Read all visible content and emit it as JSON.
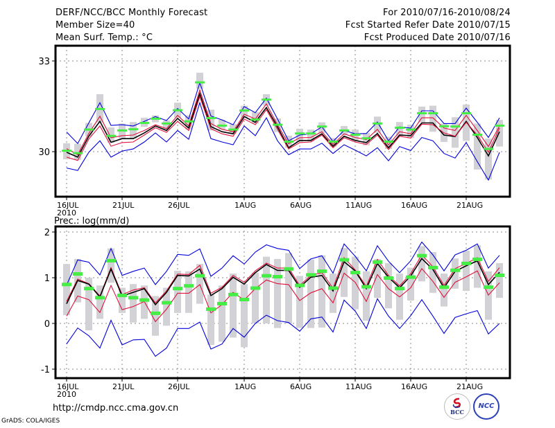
{
  "header": {
    "title": "DERF/NCC/BCC Monthly Forecast",
    "member_size": "Member Size=40",
    "variable_top": "Mean Surf. Temp.: °C",
    "period": "For 2010/07/16-2010/08/24",
    "started": "Fcst Started Refer Date 2010/07/15",
    "produced": "Fcst Produced Date 2010/07/16"
  },
  "footer": {
    "url": "http://cmdp.ncc.cma.gov.cn",
    "grads": "GrADS: COLA/IGES",
    "logo_bcc": "BCC",
    "logo_ncc": "NCC"
  },
  "colors": {
    "ensemble_bound": "#0000dd",
    "spread": "#e0103a",
    "mean": "#000000",
    "obs_marker": "#44ee44",
    "obs_range": "#d2d2d6",
    "grid": "#888888"
  },
  "chart_data": [
    {
      "type": "line",
      "title": "Mean Surf. Temp.: °C",
      "ylabel": "Mean Surf. Temp. (°C)",
      "ylim": [
        27.5,
        33.5
      ],
      "yticks": [
        30,
        33
      ],
      "x_start": "2010-07-16",
      "n_days": 40,
      "xticks": [
        {
          "day": 0,
          "label": "16JUL",
          "sublabel": "2010"
        },
        {
          "day": 5,
          "label": "21JUL"
        },
        {
          "day": 10,
          "label": "26JUL"
        },
        {
          "day": 16,
          "label": "1AUG"
        },
        {
          "day": 21,
          "label": "6AUG"
        },
        {
          "day": 26,
          "label": "11AUG"
        },
        {
          "day": 31,
          "label": "16AUG"
        },
        {
          "day": 36,
          "label": "21AUG"
        }
      ],
      "grid": true,
      "series": [
        {
          "name": "ensemble-max",
          "color_key": "ensemble_bound",
          "values": [
            30.65,
            30.27,
            30.95,
            31.62,
            30.87,
            30.89,
            30.85,
            31.0,
            31.16,
            31.03,
            31.43,
            31.08,
            32.28,
            31.18,
            31.05,
            30.89,
            31.49,
            31.29,
            31.77,
            31.08,
            30.36,
            30.55,
            30.59,
            30.82,
            30.34,
            30.7,
            30.59,
            30.6,
            30.98,
            30.36,
            30.82,
            30.78,
            31.35,
            31.35,
            30.93,
            30.93,
            31.44,
            30.97,
            30.47,
            31.12
          ]
        },
        {
          "name": "spread-upper",
          "color_key": "spread",
          "values": [
            30.1,
            29.9,
            30.6,
            31.17,
            30.46,
            30.53,
            30.55,
            30.7,
            30.89,
            30.76,
            31.2,
            30.85,
            32.04,
            30.93,
            30.74,
            30.66,
            31.24,
            31.08,
            31.58,
            30.89,
            30.26,
            30.46,
            30.47,
            30.66,
            30.24,
            30.59,
            30.47,
            30.4,
            30.74,
            30.22,
            30.66,
            30.59,
            31.12,
            31.12,
            30.78,
            30.7,
            31.2,
            30.7,
            30.17,
            30.85
          ]
        },
        {
          "name": "ensemble-mean",
          "color_key": "mean",
          "values": [
            29.98,
            29.82,
            30.51,
            31.0,
            30.31,
            30.43,
            30.43,
            30.62,
            30.85,
            30.7,
            31.1,
            30.78,
            31.92,
            30.83,
            30.66,
            30.59,
            31.16,
            30.97,
            31.46,
            30.82,
            30.13,
            30.37,
            30.37,
            30.59,
            30.18,
            30.51,
            30.37,
            30.3,
            30.6,
            30.13,
            30.55,
            30.53,
            30.95,
            30.95,
            30.55,
            30.5,
            31.0,
            30.47,
            29.86,
            30.66
          ]
        },
        {
          "name": "spread-lower",
          "color_key": "spread",
          "values": [
            29.82,
            29.71,
            30.42,
            30.85,
            30.18,
            30.3,
            30.32,
            30.55,
            30.79,
            30.64,
            31.0,
            30.7,
            31.82,
            30.76,
            30.59,
            30.51,
            31.08,
            30.89,
            31.39,
            30.74,
            30.09,
            30.3,
            30.32,
            30.55,
            30.13,
            30.46,
            30.32,
            30.24,
            30.55,
            30.07,
            30.51,
            30.45,
            30.91,
            30.89,
            30.62,
            30.51,
            30.97,
            30.55,
            29.98,
            30.78
          ]
        },
        {
          "name": "ensemble-min",
          "color_key": "ensemble_bound",
          "values": [
            29.46,
            29.38,
            29.98,
            30.36,
            29.82,
            30.02,
            30.09,
            30.32,
            30.62,
            30.32,
            30.7,
            30.41,
            31.62,
            30.43,
            30.32,
            30.23,
            30.85,
            30.53,
            31.12,
            30.36,
            29.9,
            30.09,
            30.09,
            30.28,
            29.94,
            30.23,
            30.05,
            29.86,
            30.13,
            29.7,
            30.17,
            30.04,
            30.47,
            30.36,
            29.94,
            29.79,
            30.3,
            29.67,
            29.06,
            29.98
          ]
        }
      ],
      "observed": {
        "name": "reference (green marker)",
        "values": [
          30.02,
          29.94,
          30.72,
          31.4,
          30.51,
          30.69,
          30.73,
          30.94,
          31.08,
          30.92,
          31.36,
          30.99,
          32.28,
          31.1,
          30.85,
          30.72,
          31.35,
          31.05,
          31.71,
          30.88,
          30.32,
          30.59,
          30.59,
          30.82,
          30.32,
          30.69,
          30.55,
          30.43,
          30.92,
          30.32,
          30.78,
          30.72,
          31.26,
          31.26,
          30.83,
          30.82,
          31.26,
          30.55,
          30.08,
          30.85
        ]
      },
      "ranges": {
        "name": "gray range bars",
        "low": [
          29.75,
          29.73,
          30.51,
          30.97,
          30.3,
          30.43,
          30.43,
          30.82,
          30.97,
          30.74,
          31.12,
          30.74,
          32.08,
          30.7,
          30.73,
          30.59,
          31.12,
          30.93,
          31.52,
          30.65,
          30.13,
          30.32,
          30.34,
          30.62,
          30.17,
          30.55,
          30.37,
          30.21,
          30.62,
          30.09,
          30.51,
          30.45,
          30.97,
          30.66,
          30.32,
          30.13,
          30.36,
          29.41,
          29.08,
          30.17
        ],
        "high": [
          30.28,
          30.26,
          30.95,
          31.9,
          30.8,
          30.93,
          30.98,
          31.12,
          31.2,
          31.03,
          31.62,
          31.2,
          32.61,
          31.39,
          31.06,
          30.91,
          31.52,
          31.31,
          31.9,
          31.1,
          30.53,
          30.76,
          30.73,
          30.97,
          30.45,
          30.85,
          30.73,
          30.62,
          31.16,
          30.49,
          30.98,
          30.89,
          31.49,
          31.52,
          30.93,
          31.14,
          31.56,
          30.93,
          30.43,
          31.05
        ]
      }
    },
    {
      "type": "line",
      "title": "Prec.: log(mm/d)",
      "ylabel": "Precipitation log(mm/d)",
      "ylim": [
        -1.2,
        2.1
      ],
      "yticks": [
        -1,
        0,
        1,
        2
      ],
      "x_start": "2010-07-16",
      "n_days": 40,
      "xticks": [
        {
          "day": 0,
          "label": "16JUL",
          "sublabel": "2010"
        },
        {
          "day": 5,
          "label": "21JUL"
        },
        {
          "day": 10,
          "label": "26JUL"
        },
        {
          "day": 16,
          "label": "1AUG"
        },
        {
          "day": 21,
          "label": "6AUG"
        },
        {
          "day": 26,
          "label": "11AUG"
        },
        {
          "day": 31,
          "label": "16AUG"
        },
        {
          "day": 36,
          "label": "21AUG"
        }
      ],
      "grid": true,
      "series": [
        {
          "name": "ensemble-max",
          "color_key": "ensemble_bound",
          "values": [
            0.84,
            1.39,
            1.34,
            1.06,
            1.64,
            1.05,
            1.14,
            1.21,
            0.85,
            1.14,
            1.51,
            1.49,
            1.63,
            1.03,
            1.21,
            1.48,
            1.3,
            1.56,
            1.72,
            1.64,
            1.6,
            1.2,
            1.41,
            1.48,
            1.1,
            1.74,
            1.47,
            1.15,
            1.7,
            1.36,
            1.11,
            1.37,
            1.78,
            1.5,
            1.15,
            1.5,
            1.6,
            1.74,
            1.21,
            1.49
          ]
        },
        {
          "name": "spread-upper",
          "color_key": "spread",
          "values": [
            0.48,
            0.97,
            0.87,
            0.6,
            1.22,
            0.63,
            0.73,
            0.78,
            0.45,
            0.71,
            1.08,
            1.07,
            1.27,
            0.66,
            0.79,
            1.05,
            0.9,
            1.15,
            1.32,
            1.21,
            1.21,
            0.83,
            1.05,
            1.11,
            0.77,
            1.44,
            1.17,
            0.81,
            1.4,
            1.05,
            0.82,
            1.09,
            1.5,
            1.24,
            0.83,
            1.2,
            1.31,
            1.44,
            0.92,
            1.22
          ]
        },
        {
          "name": "ensemble-mean",
          "color_key": "mean",
          "values": [
            0.43,
            0.94,
            0.86,
            0.58,
            1.19,
            0.6,
            0.68,
            0.76,
            0.41,
            0.68,
            1.05,
            1.04,
            1.19,
            0.61,
            0.76,
            1.01,
            0.86,
            1.11,
            1.29,
            1.16,
            1.16,
            0.79,
            1.01,
            1.05,
            0.71,
            1.35,
            1.15,
            0.76,
            1.31,
            1.01,
            0.78,
            1.04,
            1.42,
            1.18,
            0.78,
            1.14,
            1.26,
            1.37,
            0.85,
            1.12
          ]
        },
        {
          "name": "spread-lower",
          "color_key": "spread",
          "values": [
            0.16,
            0.6,
            0.52,
            0.24,
            0.83,
            0.3,
            0.37,
            0.48,
            0.04,
            0.31,
            0.66,
            0.66,
            0.85,
            0.23,
            0.41,
            0.68,
            0.51,
            0.76,
            0.95,
            0.87,
            0.85,
            0.5,
            0.67,
            0.76,
            0.45,
            1.1,
            0.9,
            0.48,
            1.07,
            0.76,
            0.58,
            0.78,
            1.2,
            0.92,
            0.57,
            0.9,
            1.02,
            1.15,
            0.62,
            0.89
          ]
        },
        {
          "name": "ensemble-min",
          "color_key": "ensemble_bound",
          "values": [
            -0.45,
            -0.1,
            -0.27,
            -0.54,
            0.07,
            -0.47,
            -0.36,
            -0.35,
            -0.72,
            -0.54,
            -0.11,
            -0.11,
            0.03,
            -0.56,
            -0.45,
            -0.11,
            -0.3,
            0.0,
            0.18,
            0.06,
            0.02,
            -0.17,
            0.1,
            0.14,
            -0.19,
            0.51,
            0.27,
            -0.11,
            0.54,
            0.16,
            -0.11,
            0.17,
            0.52,
            0.16,
            -0.22,
            0.13,
            0.21,
            0.28,
            -0.23,
            0.0
          ]
        }
      ],
      "observed": {
        "name": "reference (green marker)",
        "values": [
          0.86,
          1.09,
          0.77,
          0.57,
          1.38,
          0.62,
          0.57,
          0.52,
          0.23,
          0.46,
          0.77,
          0.83,
          1.05,
          0.32,
          0.44,
          0.64,
          0.53,
          0.78,
          1.05,
          1.03,
          1.2,
          0.84,
          1.07,
          1.15,
          0.78,
          1.4,
          1.12,
          0.81,
          1.35,
          1.0,
          0.77,
          1.02,
          1.49,
          1.23,
          0.8,
          1.17,
          1.32,
          1.41,
          0.8,
          1.06
        ]
      },
      "ranges": {
        "name": "gray range bars",
        "low": [
          0.18,
          0.46,
          -0.15,
          0.1,
          0.89,
          0.23,
          0.02,
          0.1,
          -0.27,
          -0.05,
          0.23,
          0.23,
          0.43,
          -0.47,
          -0.4,
          -0.31,
          -0.52,
          0.0,
          0.0,
          -0.1,
          0.0,
          -0.1,
          -0.1,
          -0.09,
          0.23,
          0.58,
          0.31,
          0.06,
          0.56,
          0.33,
          0.08,
          0.5,
          0.92,
          0.67,
          0.37,
          0.76,
          0.71,
          0.78,
          0.08,
          0.56
        ],
        "high": [
          1.3,
          1.41,
          1.0,
          0.83,
          1.64,
          0.78,
          0.86,
          0.83,
          0.6,
          0.78,
          1.15,
          1.14,
          1.3,
          0.63,
          0.83,
          1.09,
          0.86,
          1.11,
          1.46,
          1.41,
          1.54,
          1.04,
          1.4,
          1.49,
          1.09,
          1.65,
          1.46,
          1.14,
          1.41,
          1.32,
          1.09,
          1.22,
          1.69,
          1.56,
          1.09,
          1.42,
          1.59,
          1.71,
          1.14,
          1.32
        ]
      }
    }
  ]
}
